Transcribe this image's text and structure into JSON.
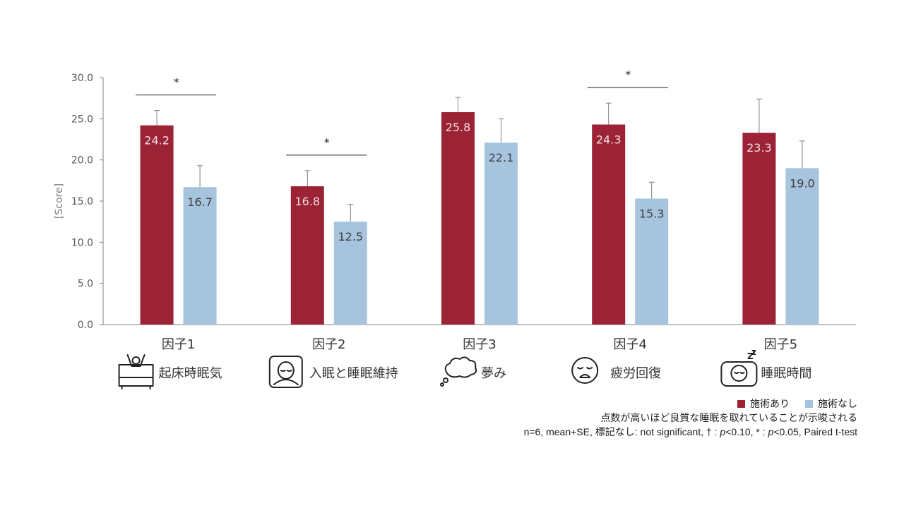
{
  "chart_data": {
    "type": "bar",
    "ylabel": "[Score]",
    "ylim": [
      0,
      30
    ],
    "yticks": [
      0,
      5,
      10,
      15,
      20,
      25,
      30
    ],
    "categories": [
      "因子1",
      "因子2",
      "因子3",
      "因子4",
      "因子5"
    ],
    "factor_labels": [
      "起床時眠気",
      "入眠と睡眠維持",
      "夢み",
      "疲労回復",
      "睡眠時間"
    ],
    "factor_icons": [
      "waking-bed-icon",
      "sleeping-person-icon",
      "dream-cloud-icon",
      "tired-face-icon",
      "sleeping-zzz-icon"
    ],
    "series": [
      {
        "name": "施術あり",
        "color": "#9b2335",
        "label_color": "#f2dfe2",
        "values": [
          24.2,
          16.8,
          25.8,
          24.3,
          23.3
        ],
        "se": [
          1.8,
          1.9,
          1.8,
          2.6,
          4.1
        ],
        "value_labels": [
          "24.2",
          "16.8",
          "25.8",
          "24.3",
          "23.3"
        ]
      },
      {
        "name": "施術なし",
        "color": "#a6c4de",
        "label_color": "#404040",
        "values": [
          16.7,
          12.5,
          22.1,
          15.3,
          19.0
        ],
        "se": [
          2.6,
          2.1,
          2.9,
          2.0,
          3.3
        ],
        "value_labels": [
          "16.7",
          "12.5",
          "22.1",
          "15.3",
          "19.0"
        ]
      }
    ],
    "significance": [
      {
        "category_index": 0,
        "mark": "*"
      },
      {
        "category_index": 1,
        "mark": "*"
      },
      {
        "category_index": 3,
        "mark": "*"
      }
    ]
  },
  "legend": {
    "with_label": "施術あり",
    "without_label": "施術なし",
    "with_color": "#9b2335",
    "without_color": "#a6c4de"
  },
  "notes": {
    "line1": "点数が高いほど良質な睡眠を取れていることが示唆される",
    "line2_prefix": "n=6, mean+SE, 標記なし: not significant, † : ",
    "line2_p1": "p",
    "line2_mid": "<0.10, * : ",
    "line2_p2": "p",
    "line2_suffix": "<0.05, Paired t-test"
  }
}
